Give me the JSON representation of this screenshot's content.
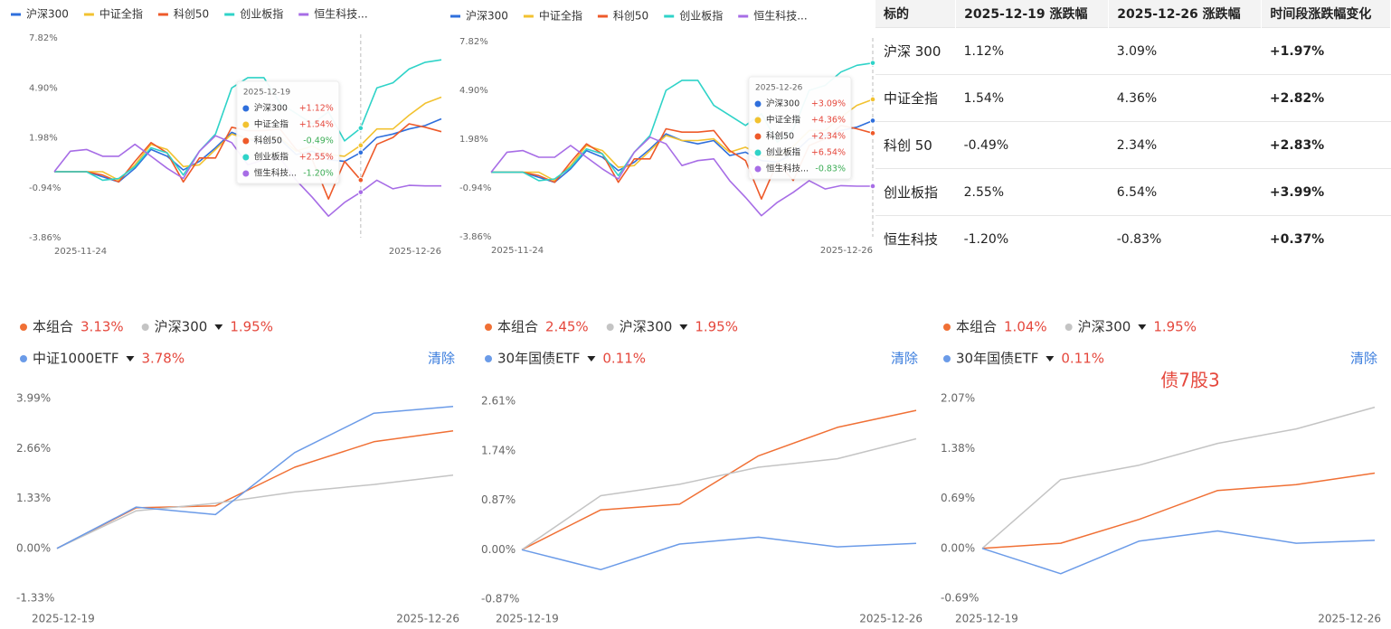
{
  "chart_data": [
    {
      "type": "line",
      "categories": [
        "2025-11-24",
        null,
        null,
        null,
        null,
        null,
        null,
        null,
        null,
        null,
        null,
        null,
        null,
        null,
        null,
        null,
        null,
        null,
        null,
        "2025-12-19",
        null,
        null,
        null,
        null,
        "2025-12-26"
      ],
      "ylim": [
        -3.86,
        7.82
      ],
      "yticks": [
        {
          "value": 7.82,
          "label": "7.82%"
        },
        {
          "value": 4.9,
          "label": "4.90%"
        },
        {
          "value": 1.98,
          "label": "1.98%"
        },
        {
          "value": -0.94,
          "label": "-0.94%"
        },
        {
          "value": -3.86,
          "label": "-3.86%"
        }
      ],
      "grid": false,
      "series": [
        {
          "name": "沪深300",
          "color": "#2f6fdc",
          "values": [
            0,
            0,
            0,
            -0.3,
            -0.6,
            0.2,
            1.3,
            0.9,
            0.1,
            0.6,
            1.4,
            2.3,
            1.9,
            1.7,
            1.9,
            1.0,
            1.2,
            0.7,
            0.6,
            1.12,
            2.0,
            2.2,
            2.5,
            2.7,
            3.09
          ],
          "value_labels": [
            null,
            null,
            null,
            null,
            null,
            null,
            null,
            null,
            null,
            null,
            null,
            null,
            null,
            null,
            null,
            null,
            null,
            null,
            null,
            "+1.12%",
            null,
            null,
            null,
            null,
            null
          ]
        },
        {
          "name": "中证全指",
          "color": "#f2c230",
          "values": [
            0,
            0,
            0,
            0,
            -0.5,
            0.4,
            1.6,
            1.3,
            0.3,
            0.4,
            1.3,
            2.2,
            1.9,
            1.9,
            2.0,
            1.2,
            1.5,
            1.0,
            0.9,
            1.54,
            2.5,
            2.5,
            3.3,
            4.0,
            4.36
          ],
          "value_labels": [
            null,
            null,
            null,
            null,
            null,
            null,
            null,
            null,
            null,
            null,
            null,
            null,
            null,
            null,
            null,
            null,
            null,
            null,
            null,
            "+1.54%",
            null,
            null,
            null,
            null,
            null
          ]
        },
        {
          "name": "科创50",
          "color": "#ee5a2a",
          "values": [
            0,
            0,
            0,
            -0.2,
            -0.6,
            0.6,
            1.7,
            1.1,
            -0.6,
            0.8,
            0.8,
            2.6,
            2.4,
            2.4,
            2.5,
            1.3,
            0.7,
            -1.6,
            0.6,
            -0.49,
            1.6,
            2.0,
            2.8,
            2.6,
            2.34
          ],
          "value_labels": [
            null,
            null,
            null,
            null,
            null,
            null,
            null,
            null,
            null,
            null,
            null,
            null,
            null,
            null,
            null,
            null,
            null,
            null,
            null,
            "-0.49%",
            null,
            null,
            null,
            null,
            null
          ]
        },
        {
          "name": "创业板指",
          "color": "#2fd3c8",
          "values": [
            0,
            0,
            0,
            -0.5,
            -0.4,
            0.3,
            1.4,
            1.1,
            -0.2,
            1.2,
            2.2,
            4.9,
            5.5,
            5.5,
            4.0,
            3.4,
            2.8,
            3.5,
            1.8,
            2.55,
            4.9,
            5.2,
            6.0,
            6.4,
            6.54
          ],
          "value_labels": [
            null,
            null,
            null,
            null,
            null,
            null,
            null,
            null,
            null,
            null,
            null,
            null,
            null,
            null,
            null,
            null,
            null,
            null,
            null,
            "+2.55%",
            null,
            null,
            null,
            null,
            null
          ]
        },
        {
          "name": "恒生科技...",
          "color": "#a76de6",
          "values": [
            0,
            1.2,
            1.3,
            0.9,
            0.9,
            1.6,
            0.9,
            0.2,
            -0.4,
            1.2,
            2.1,
            1.7,
            0.4,
            0.7,
            0.8,
            -0.5,
            -1.5,
            -2.6,
            -1.8,
            -1.2,
            -0.5,
            -1.0,
            -0.8,
            -0.83,
            -0.83
          ],
          "value_labels": [
            null,
            null,
            null,
            null,
            null,
            null,
            null,
            null,
            null,
            null,
            null,
            null,
            null,
            null,
            null,
            null,
            null,
            null,
            null,
            "-1.20%",
            null,
            null,
            null,
            null,
            null
          ]
        }
      ]
    },
    {
      "type": "line",
      "categories": [
        "2025-11-24",
        null,
        null,
        null,
        null,
        null,
        null,
        null,
        null,
        null,
        null,
        null,
        null,
        null,
        null,
        null,
        null,
        null,
        null,
        null,
        null,
        null,
        null,
        null,
        "2025-12-26"
      ],
      "ylim": [
        -3.86,
        7.82
      ],
      "yticks": [
        {
          "value": 7.82,
          "label": "7.82%"
        },
        {
          "value": 4.9,
          "label": "4.90%"
        },
        {
          "value": 1.98,
          "label": "1.98%"
        },
        {
          "value": -0.94,
          "label": "-0.94%"
        },
        {
          "value": -3.86,
          "label": "-3.86%"
        }
      ],
      "grid": false,
      "series": [
        {
          "name": "沪深300",
          "color": "#2f6fdc",
          "values": [
            0,
            0,
            0,
            -0.3,
            -0.6,
            0.2,
            1.3,
            0.9,
            0.1,
            0.6,
            1.4,
            2.3,
            1.9,
            1.7,
            1.9,
            1.0,
            1.2,
            0.7,
            0.6,
            1.12,
            2.0,
            2.2,
            2.5,
            2.7,
            3.09
          ],
          "value_labels": [
            null,
            null,
            null,
            null,
            null,
            null,
            null,
            null,
            null,
            null,
            null,
            null,
            null,
            null,
            null,
            null,
            null,
            null,
            null,
            null,
            null,
            null,
            null,
            null,
            "+3.09%"
          ]
        },
        {
          "name": "中证全指",
          "color": "#f2c230",
          "values": [
            0,
            0,
            0,
            0,
            -0.5,
            0.4,
            1.6,
            1.3,
            0.3,
            0.4,
            1.3,
            2.2,
            1.9,
            1.9,
            2.0,
            1.2,
            1.5,
            1.0,
            0.9,
            1.54,
            2.5,
            2.5,
            3.3,
            4.0,
            4.36
          ],
          "value_labels": [
            null,
            null,
            null,
            null,
            null,
            null,
            null,
            null,
            null,
            null,
            null,
            null,
            null,
            null,
            null,
            null,
            null,
            null,
            null,
            null,
            null,
            null,
            null,
            null,
            "+4.36%"
          ]
        },
        {
          "name": "科创50",
          "color": "#ee5a2a",
          "values": [
            0,
            0,
            0,
            -0.2,
            -0.6,
            0.6,
            1.7,
            1.1,
            -0.6,
            0.8,
            0.8,
            2.6,
            2.4,
            2.4,
            2.5,
            1.3,
            0.7,
            -1.6,
            0.6,
            -0.49,
            1.6,
            2.0,
            2.8,
            2.6,
            2.34
          ],
          "value_labels": [
            null,
            null,
            null,
            null,
            null,
            null,
            null,
            null,
            null,
            null,
            null,
            null,
            null,
            null,
            null,
            null,
            null,
            null,
            null,
            null,
            null,
            null,
            null,
            null,
            "+2.34%"
          ]
        },
        {
          "name": "创业板指",
          "color": "#2fd3c8",
          "values": [
            0,
            0,
            0,
            -0.5,
            -0.4,
            0.3,
            1.4,
            1.1,
            -0.2,
            1.2,
            2.2,
            4.9,
            5.5,
            5.5,
            4.0,
            3.4,
            2.8,
            3.5,
            1.8,
            2.55,
            4.9,
            5.2,
            6.0,
            6.4,
            6.54
          ],
          "value_labels": [
            null,
            null,
            null,
            null,
            null,
            null,
            null,
            null,
            null,
            null,
            null,
            null,
            null,
            null,
            null,
            null,
            null,
            null,
            null,
            null,
            null,
            null,
            null,
            null,
            "+6.54%"
          ]
        },
        {
          "name": "恒生科技...",
          "color": "#a76de6",
          "values": [
            0,
            1.2,
            1.3,
            0.9,
            0.9,
            1.6,
            0.9,
            0.2,
            -0.4,
            1.2,
            2.1,
            1.7,
            0.4,
            0.7,
            0.8,
            -0.5,
            -1.5,
            -2.6,
            -1.8,
            -1.2,
            -0.5,
            -1.0,
            -0.8,
            -0.83,
            -0.83
          ],
          "value_labels": [
            null,
            null,
            null,
            null,
            null,
            null,
            null,
            null,
            null,
            null,
            null,
            null,
            null,
            null,
            null,
            null,
            null,
            null,
            null,
            null,
            null,
            null,
            null,
            null,
            "-0.83%"
          ]
        }
      ]
    },
    {
      "type": "line",
      "categories": [
        "2025-12-19",
        null,
        null,
        null,
        null,
        "2025-12-26"
      ],
      "ylim": [
        -1.33,
        3.99
      ],
      "yticks": [
        {
          "value": 3.99,
          "label": "3.99%"
        },
        {
          "value": 2.66,
          "label": "2.66%"
        },
        {
          "value": 1.33,
          "label": "1.33%"
        },
        {
          "value": 0,
          "label": "0.00%"
        },
        {
          "value": -1.33,
          "label": "-1.33%"
        }
      ],
      "grid": false,
      "button": "清除",
      "series": [
        {
          "name": "本组合",
          "color": "#f07035",
          "values": [
            0,
            1.08,
            1.13,
            2.16,
            2.84,
            3.13
          ],
          "value_labels": [
            null,
            null,
            null,
            null,
            null,
            "3.13%"
          ]
        },
        {
          "name": "沪深300",
          "color": "#c4c4c4",
          "values": [
            0,
            1.0,
            1.2,
            1.5,
            1.7,
            1.95
          ],
          "value_labels": [
            null,
            null,
            null,
            null,
            null,
            "1.95%"
          ]
        },
        {
          "name": "中证1000ETF",
          "color": "#6b9be8",
          "values": [
            0,
            1.1,
            0.9,
            2.55,
            3.6,
            3.78
          ],
          "value_labels": [
            null,
            null,
            null,
            null,
            null,
            "3.78%"
          ]
        }
      ]
    },
    {
      "type": "line",
      "categories": [
        "2025-12-19",
        null,
        null,
        null,
        null,
        "2025-12-26"
      ],
      "ylim": [
        -0.87,
        2.61
      ],
      "yticks": [
        {
          "value": 2.61,
          "label": "2.61%"
        },
        {
          "value": 1.74,
          "label": "1.74%"
        },
        {
          "value": 0.87,
          "label": "0.87%"
        },
        {
          "value": 0,
          "label": "0.00%"
        },
        {
          "value": -0.87,
          "label": "-0.87%"
        }
      ],
      "grid": false,
      "button": "清除",
      "series": [
        {
          "name": "本组合",
          "color": "#f07035",
          "values": [
            0,
            0.7,
            0.8,
            1.65,
            2.15,
            2.45
          ],
          "value_labels": [
            null,
            null,
            null,
            null,
            null,
            "2.45%"
          ]
        },
        {
          "name": "沪深300",
          "color": "#c4c4c4",
          "values": [
            0,
            0.95,
            1.15,
            1.45,
            1.6,
            1.95
          ],
          "value_labels": [
            null,
            null,
            null,
            null,
            null,
            "1.95%"
          ]
        },
        {
          "name": "30年国债ETF",
          "color": "#6b9be8",
          "values": [
            0,
            -0.35,
            0.1,
            0.22,
            0.05,
            0.11
          ],
          "value_labels": [
            null,
            null,
            null,
            null,
            null,
            "0.11%"
          ]
        }
      ]
    },
    {
      "type": "line",
      "categories": [
        "2025-12-19",
        null,
        null,
        null,
        null,
        "2025-12-26"
      ],
      "ylim": [
        -0.69,
        2.07
      ],
      "yticks": [
        {
          "value": 2.07,
          "label": "2.07%"
        },
        {
          "value": 1.38,
          "label": "1.38%"
        },
        {
          "value": 0.69,
          "label": "0.69%"
        },
        {
          "value": 0,
          "label": "0.00%"
        },
        {
          "value": -0.69,
          "label": "-0.69%"
        }
      ],
      "grid": false,
      "button": "清除",
      "annotations": [
        "债7股3"
      ],
      "series": [
        {
          "name": "本组合",
          "color": "#f07035",
          "values": [
            0,
            0.07,
            0.4,
            0.8,
            0.88,
            1.04
          ],
          "value_labels": [
            null,
            null,
            null,
            null,
            null,
            "1.04%"
          ]
        },
        {
          "name": "沪深300",
          "color": "#c4c4c4",
          "values": [
            0,
            0.95,
            1.15,
            1.45,
            1.65,
            1.95
          ],
          "value_labels": [
            null,
            null,
            null,
            null,
            null,
            "1.95%"
          ]
        },
        {
          "name": "30年国债ETF",
          "color": "#6b9be8",
          "values": [
            0,
            -0.35,
            0.1,
            0.24,
            0.07,
            0.11
          ],
          "value_labels": [
            null,
            null,
            null,
            null,
            null,
            "0.11%"
          ]
        }
      ]
    }
  ],
  "table": {
    "header": [
      "标的",
      "2025-12-19 涨跌幅",
      "2025-12-26 涨跌幅",
      "时间段涨跌幅变化"
    ],
    "rows": [
      [
        "沪深 300",
        "1.12%",
        "3.09%",
        "+1.97%"
      ],
      [
        "中证全指",
        "1.54%",
        "4.36%",
        "+2.82%"
      ],
      [
        "科创 50",
        "-0.49%",
        "2.34%",
        "+2.83%"
      ],
      [
        "创业板指",
        "2.55%",
        "6.54%",
        "+3.99%"
      ],
      [
        "恒生科技",
        "-1.20%",
        "-0.83%",
        "+0.37%"
      ]
    ]
  }
}
